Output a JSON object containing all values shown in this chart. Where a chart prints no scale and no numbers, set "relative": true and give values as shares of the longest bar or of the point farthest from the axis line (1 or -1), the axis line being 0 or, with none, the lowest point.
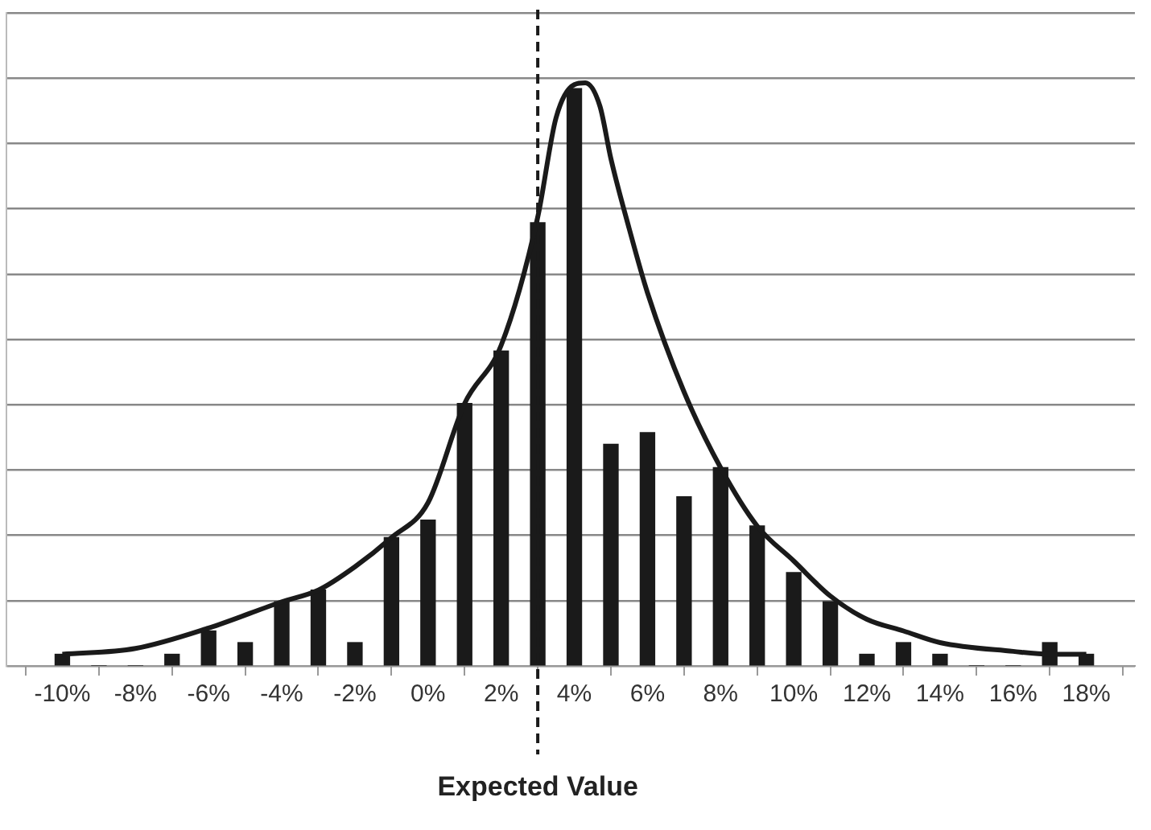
{
  "chart_data": {
    "type": "bar",
    "relative": true,
    "grid": "y",
    "legend": false,
    "xlim": [
      -10.5,
      18.3
    ],
    "xticks": [
      {
        "value": -10,
        "label": "-10%"
      },
      {
        "value": -8,
        "label": "-8%"
      },
      {
        "value": -6,
        "label": "-6%"
      },
      {
        "value": -4,
        "label": "-4%"
      },
      {
        "value": -2,
        "label": "-2%"
      },
      {
        "value": 0,
        "label": "0%"
      },
      {
        "value": 2,
        "label": "2%"
      },
      {
        "value": 4,
        "label": "4%"
      },
      {
        "value": 6,
        "label": "6%"
      },
      {
        "value": 8,
        "label": "8%"
      },
      {
        "value": 10,
        "label": "10%"
      },
      {
        "value": 12,
        "label": "12%"
      },
      {
        "value": 14,
        "label": "14%"
      },
      {
        "value": 16,
        "label": "16%"
      },
      {
        "value": 18,
        "label": "18%"
      }
    ],
    "series": [
      {
        "color": "#1a1a1a",
        "x": [
          -10,
          -9,
          -8,
          -7,
          -6,
          -5,
          -4,
          -3,
          -2,
          -1,
          0,
          1,
          2,
          3,
          4,
          5,
          6,
          7,
          8,
          9,
          10,
          11,
          12,
          13,
          14,
          15,
          16,
          17,
          18
        ],
        "values": [
          0.02,
          0,
          0,
          0.02,
          0.06,
          0.04,
          0.11,
          0.13,
          0.04,
          0.22,
          0.25,
          0.45,
          0.54,
          0.76,
          0.99,
          0.38,
          0.4,
          0.29,
          0.34,
          0.24,
          0.16,
          0.11,
          0.02,
          0.04,
          0.02,
          0,
          0,
          0.04,
          0.02
        ]
      },
      {
        "type": "line",
        "color": "#1a1a1a",
        "marker": "none",
        "line_style": "solid",
        "x": [
          -10,
          -8,
          -6,
          -4,
          -3,
          -2,
          -1,
          0,
          1,
          2,
          3,
          3.5,
          4,
          4.3,
          4.7,
          5,
          5.5,
          6,
          7,
          8,
          9,
          10,
          11,
          12,
          13,
          14,
          16,
          17,
          18
        ],
        "values": [
          0.02,
          0.03,
          0.065,
          0.11,
          0.13,
          0.17,
          0.22,
          0.28,
          0.45,
          0.55,
          0.77,
          0.94,
          0.997,
          1,
          0.96,
          0.87,
          0.75,
          0.64,
          0.47,
          0.34,
          0.24,
          0.18,
          0.12,
          0.08,
          0.06,
          0.04,
          0.025,
          0.02,
          0.02
        ]
      }
    ],
    "ref_lines": [
      {
        "axis": "x",
        "value": 3,
        "label": "Expected Value",
        "color": "#1a1a1a",
        "line_style": "dashed"
      }
    ]
  }
}
